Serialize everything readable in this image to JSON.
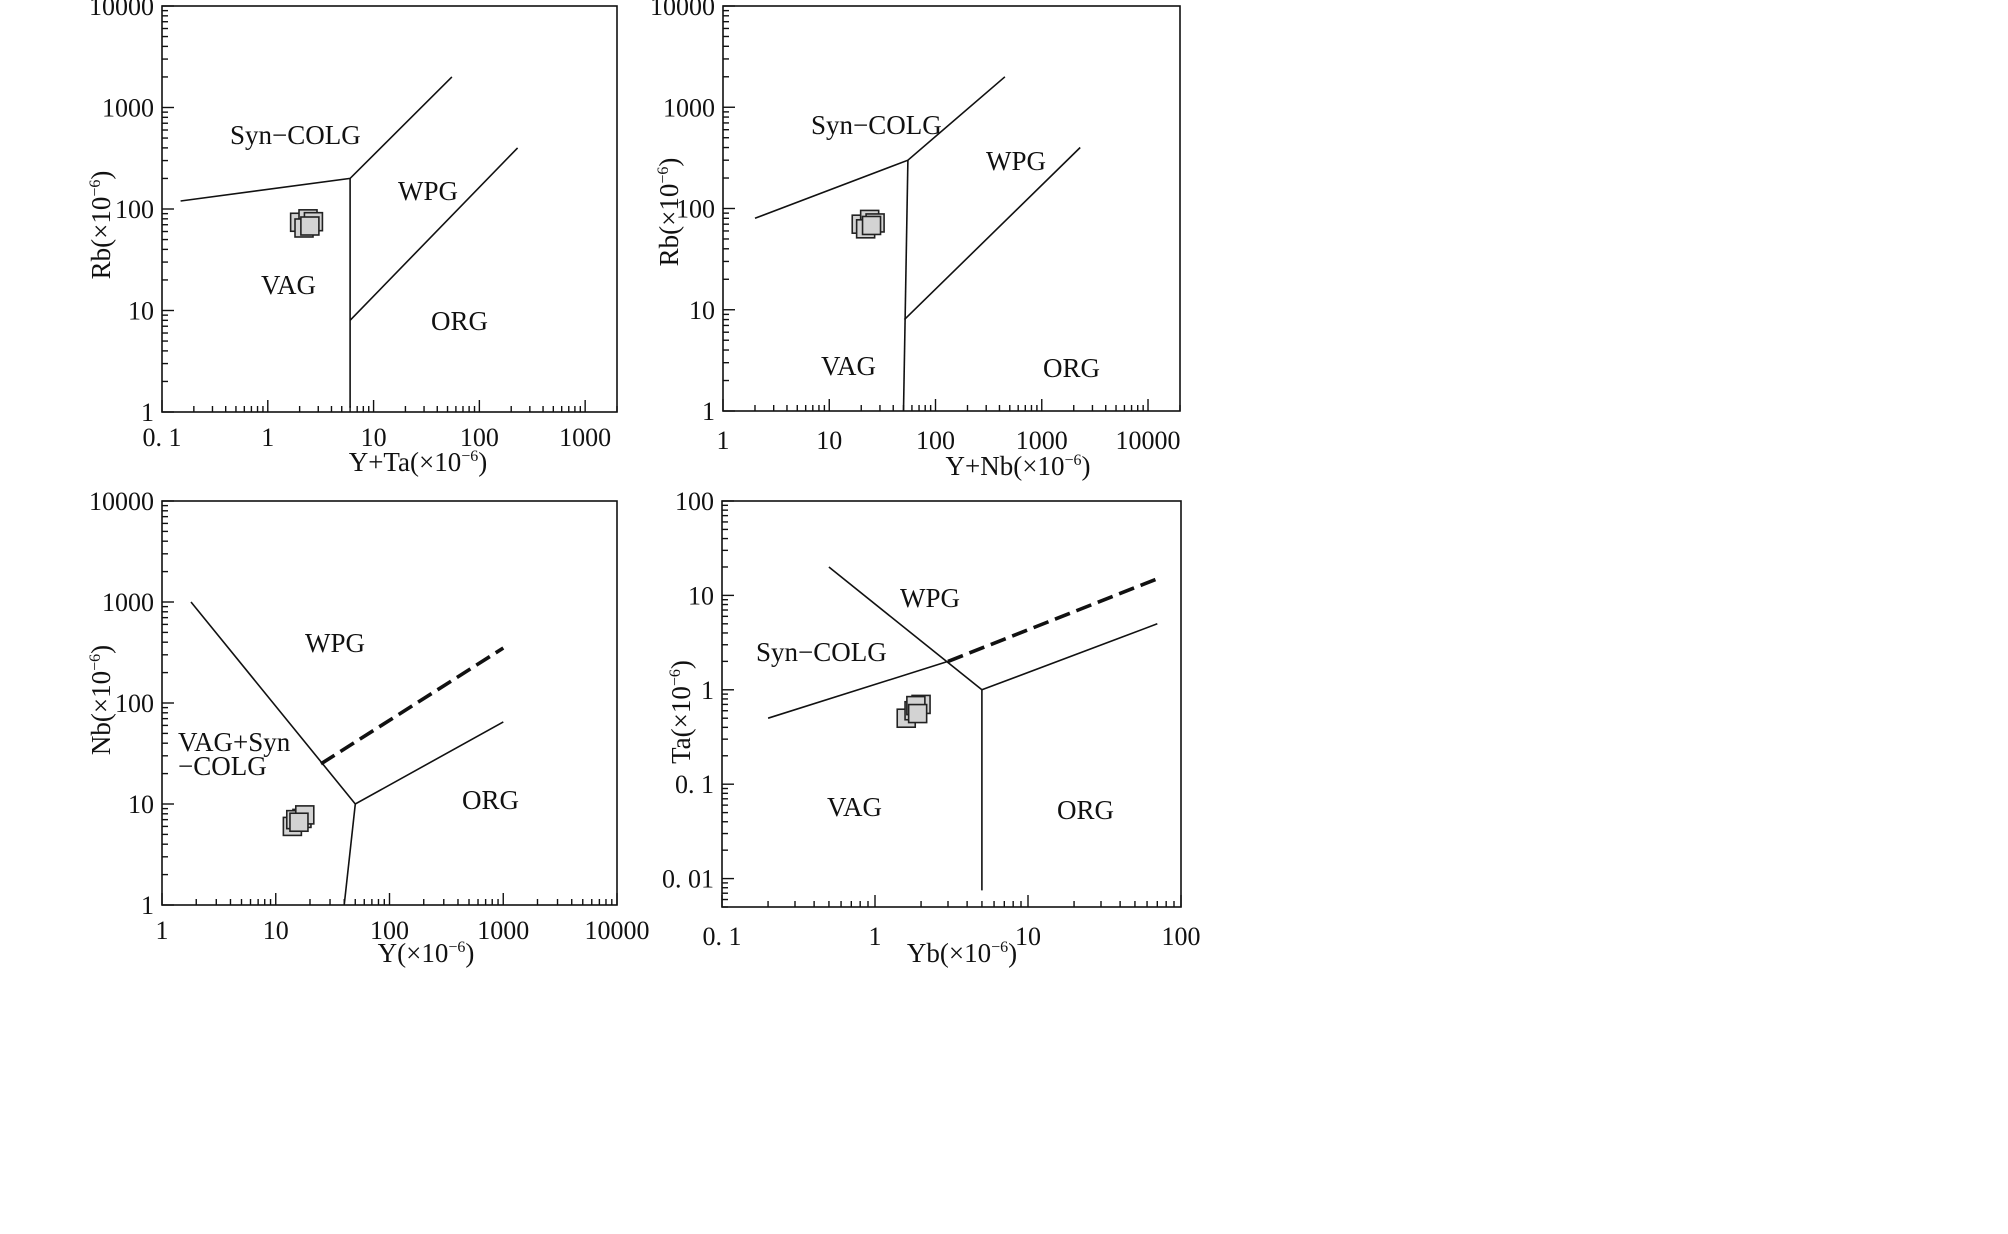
{
  "chart_data": [
    {
      "id": "rb-yta",
      "type": "scatter",
      "xlabel": "Y+Ta",
      "ylabel": "Rb",
      "unit": "(×10",
      "unit_exp": "−6",
      "unit_close": ")",
      "xscale": "log",
      "yscale": "log",
      "xlim": [
        0.1,
        2000
      ],
      "ylim": [
        1,
        10000
      ],
      "xticks": [
        "0. 1",
        "1",
        "10",
        "100",
        "1000"
      ],
      "yticks": [
        "1",
        "10",
        "100",
        "1000",
        "10000"
      ],
      "fields": [
        "Syn−COLG",
        "WPG",
        "VAG",
        "ORG"
      ],
      "boundaries": [
        {
          "style": "solid",
          "points": [
            [
              0.15,
              120
            ],
            [
              6,
              200
            ],
            [
              55,
              2000
            ]
          ]
        },
        {
          "style": "solid",
          "points": [
            [
              6,
              200
            ],
            [
              6,
              1.1
            ]
          ]
        },
        {
          "style": "solid",
          "points": [
            [
              6,
              8
            ],
            [
              230,
              400
            ]
          ]
        }
      ],
      "samples": [
        [
          2.0,
          74
        ],
        [
          2.4,
          80
        ],
        [
          2.2,
          65
        ],
        [
          2.7,
          75
        ],
        [
          2.5,
          68
        ]
      ]
    },
    {
      "id": "rb-ynb",
      "type": "scatter",
      "xlabel": "Y+Nb",
      "ylabel": "Rb",
      "unit": "(×10",
      "unit_exp": "−6",
      "unit_close": ")",
      "xscale": "log",
      "yscale": "log",
      "xlim": [
        1,
        20000
      ],
      "ylim": [
        1,
        10000
      ],
      "xticks": [
        "1",
        "10",
        "100",
        "1000",
        "10000"
      ],
      "yticks": [
        "1",
        "10",
        "100",
        "1000",
        "10000"
      ],
      "fields": [
        "Syn−COLG",
        "WPG",
        "VAG",
        "ORG"
      ],
      "boundaries": [
        {
          "style": "solid",
          "points": [
            [
              2,
              80
            ],
            [
              55,
              300
            ],
            [
              450,
              2000
            ]
          ]
        },
        {
          "style": "solid",
          "points": [
            [
              55,
              300
            ],
            [
              50,
              1.0
            ]
          ]
        },
        {
          "style": "solid",
          "points": [
            [
              51,
              8
            ],
            [
              2300,
              400
            ]
          ]
        }
      ],
      "samples": [
        [
          20,
          70
        ],
        [
          24,
          78
        ],
        [
          22,
          63
        ],
        [
          27,
          72
        ],
        [
          25,
          68
        ]
      ]
    },
    {
      "id": "nb-y",
      "type": "scatter",
      "xlabel": "Y",
      "ylabel": "Nb",
      "unit": "(×10",
      "unit_exp": "−6",
      "unit_close": ")",
      "xscale": "log",
      "yscale": "log",
      "xlim": [
        1,
        10000
      ],
      "ylim": [
        1,
        10000
      ],
      "xticks": [
        "1",
        "10",
        "100",
        "1000",
        "10000"
      ],
      "yticks": [
        "1",
        "10",
        "100",
        "1000",
        "10000"
      ],
      "fields": [
        "WPG",
        "VAG+Syn",
        "−COLG",
        "ORG"
      ],
      "boundaries": [
        {
          "style": "solid",
          "points": [
            [
              1.8,
              1000
            ],
            [
              50,
              10
            ],
            [
              1000,
              65
            ]
          ]
        },
        {
          "style": "solid",
          "points": [
            [
              50,
              10
            ],
            [
              40,
              1.0
            ]
          ]
        },
        {
          "style": "dashed",
          "points": [
            [
              25,
              25
            ],
            [
              1000,
              350
            ]
          ]
        }
      ],
      "samples": [
        [
          14,
          6
        ],
        [
          17,
          7.2
        ],
        [
          15,
          7
        ],
        [
          18,
          7.8
        ],
        [
          16,
          6.6
        ]
      ]
    },
    {
      "id": "ta-yb",
      "type": "scatter",
      "xlabel": "Yb",
      "ylabel": "Ta",
      "unit": "(×10",
      "unit_exp": "−6",
      "unit_close": ")",
      "xscale": "log",
      "yscale": "log",
      "xlim": [
        0.1,
        100
      ],
      "ylim": [
        0.005,
        100
      ],
      "xticks": [
        "0. 1",
        "1",
        "10",
        "100"
      ],
      "yticks": [
        "0. 01",
        "0. 1",
        "1",
        "10",
        "100"
      ],
      "fields": [
        "WPG",
        "Syn−COLG",
        "VAG",
        "ORG"
      ],
      "boundaries": [
        {
          "style": "solid",
          "points": [
            [
              0.5,
              20
            ],
            [
              5,
              1
            ]
          ]
        },
        {
          "style": "solid",
          "points": [
            [
              0.2,
              0.5
            ],
            [
              3,
              2
            ]
          ]
        },
        {
          "style": "solid",
          "points": [
            [
              5,
              1
            ],
            [
              5,
              0.0075
            ]
          ]
        },
        {
          "style": "solid",
          "points": [
            [
              5,
              1
            ],
            [
              70,
              5
            ]
          ]
        },
        {
          "style": "dashed",
          "points": [
            [
              3,
              2
            ],
            [
              70,
              15
            ]
          ]
        }
      ],
      "samples": [
        [
          1.6,
          0.5
        ],
        [
          1.8,
          0.6
        ],
        [
          2.0,
          0.7
        ],
        [
          1.85,
          0.68
        ],
        [
          1.9,
          0.56
        ]
      ]
    }
  ]
}
